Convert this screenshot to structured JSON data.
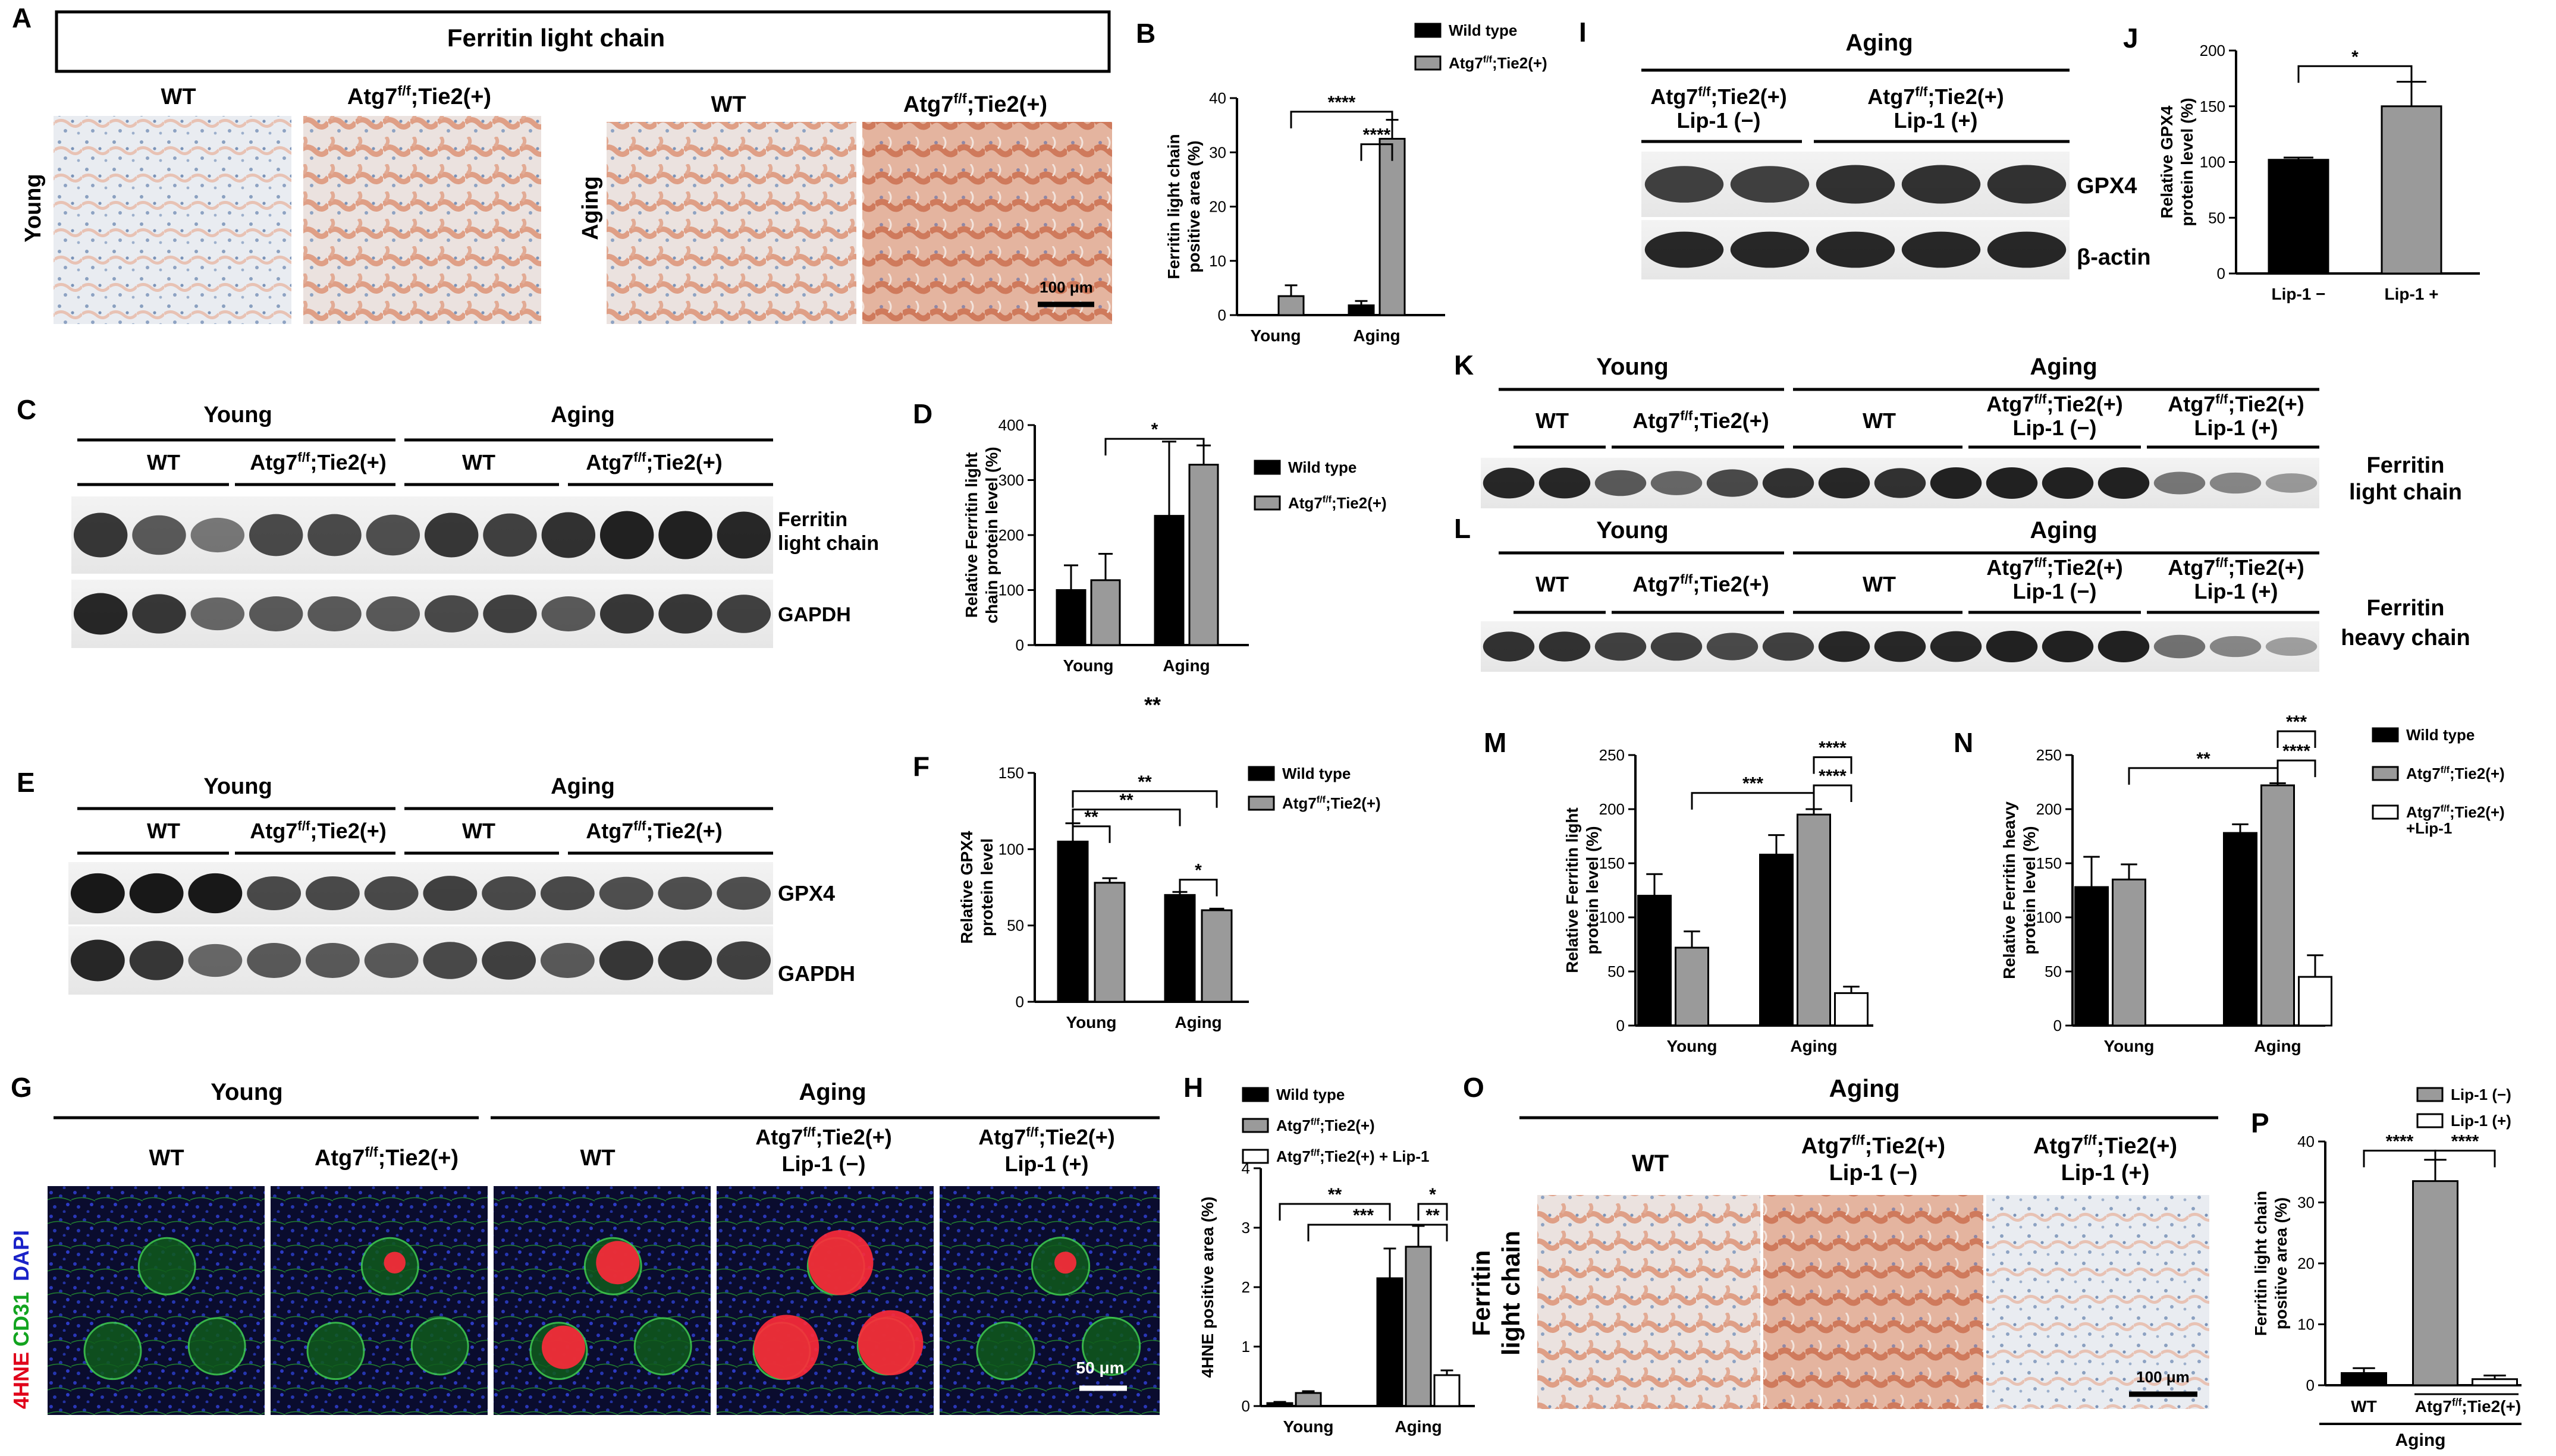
{
  "panels": {
    "A": {
      "letter": "A",
      "title": "Ferritin light chain",
      "wt": "WT",
      "atg": "Atg7",
      "sup": "f/f",
      "tail": ";Tie2(+)",
      "young": "Young",
      "aging": "Aging",
      "scale": "100 μm"
    },
    "C": {
      "letter": "C",
      "young": "Young",
      "aging": "Aging",
      "wt": "WT",
      "atg": "Atg7",
      "sup": "f/f",
      "tail": ";Tie2(+)",
      "band1": [
        "Ferritin",
        "light chain"
      ],
      "band2": "GAPDH"
    },
    "E": {
      "letter": "E",
      "young": "Young",
      "aging": "Aging",
      "wt": "WT",
      "atg": "Atg7",
      "sup": "f/f",
      "tail": ";Tie2(+)",
      "band1": "GPX4",
      "band2": "GAPDH"
    },
    "G": {
      "letter": "G",
      "young": "Young",
      "aging": "Aging",
      "wt": "WT",
      "atg": "Atg7",
      "sup": "f/f",
      "tail": ";Tie2(+)",
      "lipm": "Lip-1 (−)",
      "lipp": "Lip-1 (+)",
      "stain_4hne": "4HNE",
      "stain_cd31": "CD31",
      "stain_dapi": "DAPI",
      "scale": "50 μm"
    },
    "I": {
      "letter": "I",
      "aging": "Aging",
      "atg": "Atg7",
      "sup": "f/f",
      "tail": ";Tie2(+)",
      "lipm": "Lip-1 (−)",
      "lipp": "Lip-1 (+)",
      "band1": "GPX4",
      "band2": "β-actin"
    },
    "K": {
      "letter": "K",
      "young": "Young",
      "aging": "Aging",
      "wt": "WT",
      "atg": "Atg7",
      "sup": "f/f",
      "tail": ";Tie2(+)",
      "lipm": "Lip-1 (−)",
      "lipp": "Lip-1 (+)",
      "band": [
        "Ferritin",
        "light chain"
      ]
    },
    "L": {
      "letter": "L",
      "young": "Young",
      "aging": "Aging",
      "wt": "WT",
      "atg": "Atg7",
      "sup": "f/f",
      "tail": ";Tie2(+)",
      "lipm": "Lip-1 (−)",
      "lipp": "Lip-1 (+)",
      "band": [
        "Ferritin",
        "heavy chain"
      ]
    },
    "O": {
      "letter": "O",
      "aging": "Aging",
      "wt": "WT",
      "atg": "Atg7",
      "sup": "f/f",
      "tail": ";Tie2(+)",
      "lipm": "Lip-1 (−)",
      "lipp": "Lip-1 (+)",
      "side": [
        "Ferritin",
        "light chain"
      ],
      "scale": "100 μm"
    }
  },
  "legend_shared_N": {
    "wt": "Wild type",
    "atg": "Atg7",
    "sup": "f/f",
    "tail": ";Tie2(+)",
    "lip": "+Lip-1"
  },
  "stray_mark": "**",
  "colors": {
    "black": "#000000",
    "gray": "#9a9a9a",
    "white": "#ffffff",
    "ihc_bg": "#e6e9ee",
    "ihc_stain": "#d98a6e",
    "if_bg": "#0b1030"
  },
  "chart_data": [
    {
      "id": "B",
      "type": "bar",
      "letter": "B",
      "categories": [
        "Young",
        "Aging"
      ],
      "ylabel": [
        "Ferritin light chain",
        "positive area (%)"
      ],
      "ylim": [
        0,
        40
      ],
      "yticks": [
        0,
        10,
        20,
        30,
        40
      ],
      "legend": [
        {
          "label": "Wild type",
          "color": "#000000"
        },
        {
          "label": "Atg7",
          "sup": "f/f",
          "tail": ";Tie2(+)",
          "color": "#9a9a9a"
        }
      ],
      "series": [
        {
          "name": "Wild type",
          "values": [
            0,
            1.8
          ],
          "errors": [
            0,
            0.8
          ]
        },
        {
          "name": "Atg7f/f;Tie2(+)",
          "values": [
            3.5,
            32.5
          ],
          "errors": [
            2.0,
            3.5
          ]
        }
      ],
      "sig": [
        {
          "label": "****",
          "from": [
            0,
            1
          ],
          "to": [
            1,
            1
          ],
          "y": 37.5
        },
        {
          "label": "****",
          "from": [
            1,
            0
          ],
          "to": [
            1,
            1
          ],
          "y": 31.5
        }
      ]
    },
    {
      "id": "D",
      "type": "bar",
      "letter": "D",
      "categories": [
        "Young",
        "Aging"
      ],
      "ylabel": [
        "Relative Ferritin light",
        "chain protein level (%)"
      ],
      "ylim": [
        0,
        400
      ],
      "yticks": [
        0,
        100,
        200,
        300,
        400
      ],
      "legend": [
        {
          "label": "Wild type",
          "color": "#000000"
        },
        {
          "label": "Atg7",
          "sup": "f/f",
          "tail": ";Tie2(+)",
          "color": "#9a9a9a"
        }
      ],
      "series": [
        {
          "name": "Wild type",
          "values": [
            100,
            235
          ],
          "errors": [
            45,
            135
          ]
        },
        {
          "name": "Atg7f/f;Tie2(+)",
          "values": [
            118,
            328
          ],
          "errors": [
            48,
            35
          ]
        }
      ],
      "sig": [
        {
          "label": "*",
          "from": [
            0,
            1
          ],
          "to": [
            1,
            1
          ],
          "y": 375
        }
      ]
    },
    {
      "id": "F",
      "type": "bar",
      "letter": "F",
      "categories": [
        "Young",
        "Aging"
      ],
      "ylabel": [
        "Relative GPX4",
        "protein level"
      ],
      "ylim": [
        0,
        150
      ],
      "yticks": [
        0,
        50,
        100,
        150
      ],
      "legend": [
        {
          "label": "Wild type",
          "color": "#000000"
        },
        {
          "label": "Atg7",
          "sup": "f/f",
          "tail": ";Tie2(+)",
          "color": "#9a9a9a"
        }
      ],
      "series": [
        {
          "name": "Wild type",
          "values": [
            105,
            70
          ],
          "errors": [
            12,
            2
          ]
        },
        {
          "name": "Atg7f/f;Tie2(+)",
          "values": [
            78,
            60
          ],
          "errors": [
            3,
            1
          ]
        }
      ],
      "sig": [
        {
          "label": "**",
          "from": [
            0,
            0
          ],
          "to": [
            1,
            1
          ],
          "y": 138
        },
        {
          "label": "**",
          "from": [
            0,
            0
          ],
          "to": [
            1,
            0
          ],
          "y": 126
        },
        {
          "label": "**",
          "from": [
            0,
            0
          ],
          "to": [
            0,
            1
          ],
          "y": 115
        },
        {
          "label": "*",
          "from": [
            1,
            0
          ],
          "to": [
            1,
            1
          ],
          "y": 80
        }
      ]
    },
    {
      "id": "H",
      "type": "bar",
      "letter": "H",
      "categories": [
        "Young",
        "Aging"
      ],
      "ylabel": [
        "4HNE positive area (%)"
      ],
      "ylim": [
        0,
        4
      ],
      "yticks": [
        0,
        1,
        2,
        3,
        4
      ],
      "legend": [
        {
          "label": "Wild type",
          "color": "#000000"
        },
        {
          "label": "Atg7",
          "sup": "f/f",
          "tail": ";Tie2(+)",
          "color": "#9a9a9a"
        },
        {
          "label": "Atg7",
          "sup": "f/f",
          "tail": ";Tie2(+) + Lip-1",
          "color": "#ffffff"
        }
      ],
      "series": [
        {
          "name": "Wild type",
          "values": [
            0.05,
            2.15
          ],
          "errors": [
            0.02,
            0.5
          ]
        },
        {
          "name": "Atg7f/f;Tie2(+)",
          "values": [
            0.22,
            2.68
          ],
          "errors": [
            0.03,
            0.35
          ]
        },
        {
          "name": "Atg7f/f;Tie2(+) + Lip-1",
          "values": [
            null,
            0.52
          ],
          "errors": [
            null,
            0.08
          ]
        }
      ],
      "sig": [
        {
          "label": "**",
          "from": [
            0,
            0
          ],
          "to": [
            1,
            0
          ],
          "y": 3.4
        },
        {
          "label": "***",
          "from": [
            0,
            1
          ],
          "to": [
            1,
            1
          ],
          "y": 3.05
        },
        {
          "label": "*",
          "from": [
            1,
            1
          ],
          "to": [
            1,
            2
          ],
          "y": 3.4
        },
        {
          "label": "**",
          "from": [
            1,
            1
          ],
          "to": [
            1,
            2
          ],
          "y": 3.05
        }
      ]
    },
    {
      "id": "J",
      "type": "bar",
      "letter": "J",
      "categories": [
        "Lip-1 −",
        "Lip-1 +"
      ],
      "ylabel": [
        "Relative GPX4",
        "protein level (%)"
      ],
      "ylim": [
        0,
        200
      ],
      "yticks": [
        0,
        50,
        100,
        150,
        200
      ],
      "series": [
        {
          "name": "Lip-1",
          "values": [
            102,
            150
          ],
          "errors": [
            2,
            22
          ],
          "colors": [
            "#000000",
            "#9a9a9a"
          ]
        }
      ],
      "sig": [
        {
          "label": "*",
          "from": [
            0,
            0
          ],
          "to": [
            1,
            0
          ],
          "y": 186
        }
      ]
    },
    {
      "id": "M",
      "type": "bar",
      "letter": "M",
      "categories": [
        "Young",
        "Aging"
      ],
      "ylabel": [
        "Relative Ferritin light",
        "protein level (%)"
      ],
      "ylim": [
        0,
        250
      ],
      "yticks": [
        0,
        50,
        100,
        150,
        200,
        250
      ],
      "series": [
        {
          "name": "Wild type",
          "values": [
            120,
            158
          ],
          "errors": [
            20,
            18
          ]
        },
        {
          "name": "Atg7f/f;Tie2(+)",
          "values": [
            72,
            195
          ],
          "errors": [
            15,
            5
          ]
        },
        {
          "name": "Atg7f/f;Tie2(+) + Lip-1",
          "values": [
            null,
            30
          ],
          "errors": [
            null,
            6
          ]
        }
      ],
      "sig": [
        {
          "label": "***",
          "from": [
            0,
            1
          ],
          "to": [
            1,
            1
          ],
          "y": 215
        },
        {
          "label": "****",
          "from": [
            1,
            1
          ],
          "to": [
            1,
            2
          ],
          "y": 248
        },
        {
          "label": "****",
          "from": [
            1,
            1
          ],
          "to": [
            1,
            2
          ],
          "y": 222
        }
      ]
    },
    {
      "id": "N",
      "type": "bar",
      "letter": "N",
      "categories": [
        "Young",
        "Aging"
      ],
      "ylabel": [
        "Relative Ferritin heavy",
        "protein level (%)"
      ],
      "ylim": [
        0,
        250
      ],
      "yticks": [
        0,
        50,
        100,
        150,
        200,
        250
      ],
      "series": [
        {
          "name": "Wild type",
          "values": [
            128,
            178
          ],
          "errors": [
            28,
            8
          ]
        },
        {
          "name": "Atg7f/f;Tie2(+)",
          "values": [
            135,
            222
          ],
          "errors": [
            14,
            2
          ]
        },
        {
          "name": "Atg7f/f;Tie2(+) + Lip-1",
          "values": [
            null,
            45
          ],
          "errors": [
            null,
            20
          ]
        }
      ],
      "sig": [
        {
          "label": "**",
          "from": [
            0,
            1
          ],
          "to": [
            1,
            1
          ],
          "y": 238
        },
        {
          "label": "***",
          "from": [
            1,
            1
          ],
          "to": [
            1,
            2
          ],
          "y": 272
        },
        {
          "label": "****",
          "from": [
            1,
            1
          ],
          "to": [
            1,
            2
          ],
          "y": 245
        }
      ]
    },
    {
      "id": "P",
      "type": "bar",
      "letter": "P",
      "categories": [
        "WT",
        "Atg7f/f;Tie2(+)"
      ],
      "group": "Aging",
      "ylabel": [
        "Ferritin light chain",
        "positive area (%)"
      ],
      "ylim": [
        0,
        40
      ],
      "yticks": [
        0,
        10,
        20,
        30,
        40
      ],
      "legend": [
        {
          "label": "Lip-1 (−)",
          "color": "#9a9a9a"
        },
        {
          "label": "Lip-1 (+)",
          "color": "#ffffff"
        }
      ],
      "bars": [
        {
          "label": "WT",
          "value": 2.0,
          "error": 0.8,
          "color": "#000000"
        },
        {
          "label": "Lip-1 (−)",
          "value": 33.5,
          "error": 3.5,
          "color": "#9a9a9a"
        },
        {
          "label": "Lip-1 (+)",
          "value": 1.0,
          "error": 0.6,
          "color": "#ffffff"
        }
      ],
      "sig": [
        {
          "label": "****",
          "from": 0,
          "to": 1,
          "y": 38.5
        },
        {
          "label": "****",
          "from": 1,
          "to": 2,
          "y": 38.5
        }
      ]
    }
  ]
}
